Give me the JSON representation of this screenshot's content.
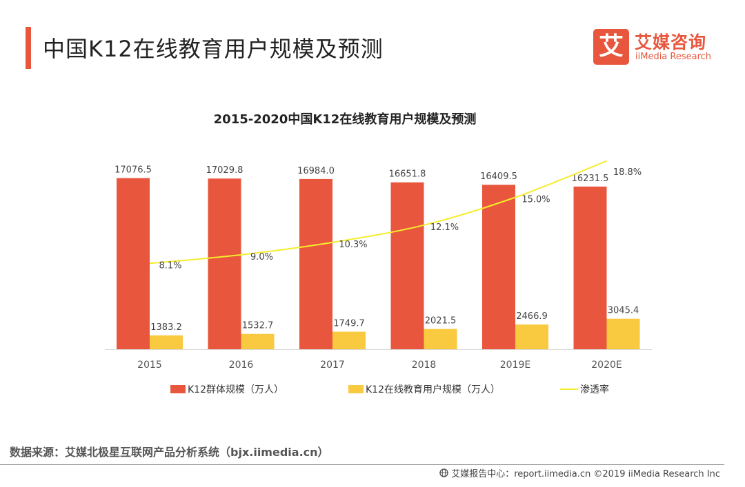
{
  "page": {
    "title": "中国K12在线教育用户规模及预测",
    "source": "数据来源：艾媒北极星互联网产品分析系统（bjx.iimedia.cn）",
    "footer": "艾媒报告中心：report.iimedia.cn ©2019 iiMedia Research Inc",
    "accent_color": "#e8573d"
  },
  "logo": {
    "mark": "艾",
    "name_cn": "艾媒咨询",
    "name_en": "iiMedia Research"
  },
  "chart_data": {
    "type": "bar",
    "title": "2015-2020中国K12在线教育用户规模及预测",
    "categories": [
      "2015",
      "2016",
      "2017",
      "2018",
      "2019E",
      "2020E"
    ],
    "series": [
      {
        "name": "K12群体规模（万人）",
        "type": "bar",
        "color": "#e8573d",
        "values": [
          17076.5,
          17029.8,
          16984.0,
          16651.8,
          16409.5,
          16231.5
        ],
        "labels": [
          "17076.5",
          "17029.8",
          "16984.0",
          "16651.8",
          "16409.5",
          "16231.5"
        ]
      },
      {
        "name": "K12在线教育用户规模（万人）",
        "type": "bar",
        "color": "#f9c940",
        "values": [
          1383.2,
          1532.7,
          1749.7,
          2021.5,
          2466.9,
          3045.4
        ],
        "labels": [
          "1383.2",
          "1532.7",
          "1749.7",
          "2021.5",
          "2466.9",
          "3045.4"
        ]
      },
      {
        "name": "渗透率",
        "type": "line",
        "color": "#f5ed2e",
        "values": [
          8.1,
          9.0,
          10.3,
          12.1,
          15.0,
          18.8
        ],
        "labels": [
          "8.1%",
          "9.0%",
          "10.3%",
          "12.1%",
          "15.0%",
          "18.8%"
        ]
      }
    ],
    "legend_position": "bottom",
    "grid": false
  }
}
